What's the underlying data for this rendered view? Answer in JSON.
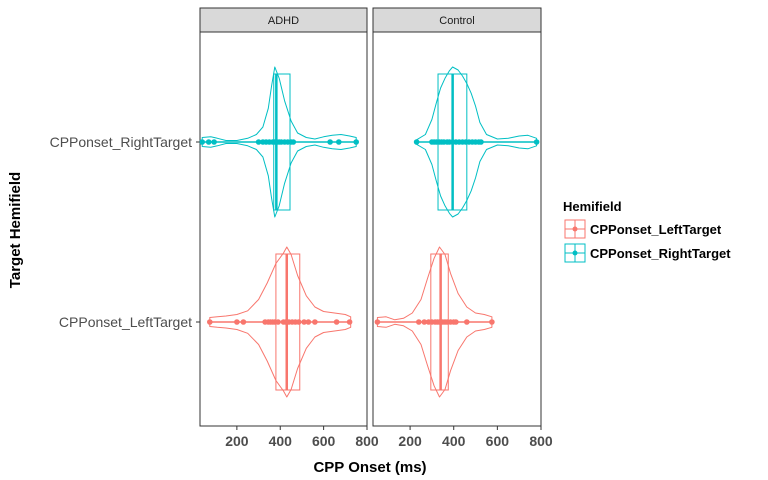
{
  "colors": {
    "LeftTarget": "#F8766D",
    "RightTarget": "#00BFC4"
  },
  "chart_data": {
    "type": "violin-box-dot",
    "xlabel": "CPP Onset (ms)",
    "ylabel": "Target Hemifield",
    "xlim": [
      30,
      800
    ],
    "xticks": [
      "200",
      "400",
      "600",
      "800"
    ],
    "xtick_values": [
      200,
      400,
      600,
      800
    ],
    "categories": [
      "CPPonset_LeftTarget",
      "CPPonset_RightTarget"
    ],
    "legend": {
      "title": "Hemifield",
      "position": "right",
      "entries": [
        "CPPonset_LeftTarget",
        "CPPonset_RightTarget"
      ]
    },
    "panels": [
      {
        "title": "ADHD",
        "groups": [
          {
            "category": "CPPonset_RightTarget",
            "box": {
              "q1": 370,
              "median": 382,
              "q3": 445
            },
            "points": [
              40,
              70,
              95,
              300,
              320,
              335,
              350,
              365,
              375,
              385,
              395,
              405,
              420,
              435,
              450,
              460,
              630,
              670,
              750
            ],
            "density": [
              [
                40,
                0.06
              ],
              [
                80,
                0.07
              ],
              [
                110,
                0.05
              ],
              [
                150,
                0.02
              ],
              [
                200,
                0.02
              ],
              [
                250,
                0.05
              ],
              [
                290,
                0.1
              ],
              [
                320,
                0.2
              ],
              [
                345,
                0.45
              ],
              [
                360,
                0.75
              ],
              [
                375,
                1.0
              ],
              [
                395,
                0.85
              ],
              [
                420,
                0.55
              ],
              [
                450,
                0.28
              ],
              [
                480,
                0.12
              ],
              [
                520,
                0.06
              ],
              [
                560,
                0.04
              ],
              [
                600,
                0.07
              ],
              [
                640,
                0.09
              ],
              [
                680,
                0.1
              ],
              [
                720,
                0.08
              ],
              [
                750,
                0.06
              ]
            ]
          },
          {
            "category": "CPPonset_LeftTarget",
            "box": {
              "q1": 380,
              "median": 430,
              "q3": 490
            },
            "points": [
              75,
              200,
              230,
              330,
              345,
              355,
              365,
              375,
              390,
              415,
              425,
              440,
              455,
              470,
              485,
              510,
              530,
              560,
              660,
              720
            ],
            "density": [
              [
                75,
                0.06
              ],
              [
                110,
                0.07
              ],
              [
                150,
                0.08
              ],
              [
                200,
                0.1
              ],
              [
                250,
                0.15
              ],
              [
                300,
                0.3
              ],
              [
                340,
                0.52
              ],
              [
                380,
                0.78
              ],
              [
                415,
                0.92
              ],
              [
                430,
                1.0
              ],
              [
                450,
                0.9
              ],
              [
                480,
                0.62
              ],
              [
                520,
                0.35
              ],
              [
                560,
                0.2
              ],
              [
                600,
                0.14
              ],
              [
                650,
                0.12
              ],
              [
                700,
                0.1
              ],
              [
                725,
                0.07
              ]
            ]
          }
        ]
      },
      {
        "title": "Control",
        "groups": [
          {
            "category": "CPPonset_RightTarget",
            "box": {
              "q1": 328,
              "median": 395,
              "q3": 460
            },
            "points": [
              230,
              300,
              310,
              320,
              335,
              345,
              355,
              370,
              380,
              395,
              410,
              425,
              440,
              455,
              470,
              485,
              500,
              515,
              525,
              780
            ],
            "density": [
              [
                230,
                0.03
              ],
              [
                270,
                0.1
              ],
              [
                300,
                0.3
              ],
              [
                320,
                0.52
              ],
              [
                340,
                0.72
              ],
              [
                360,
                0.85
              ],
              [
                380,
                0.95
              ],
              [
                395,
                1.0
              ],
              [
                420,
                0.96
              ],
              [
                440,
                0.88
              ],
              [
                460,
                0.78
              ],
              [
                480,
                0.65
              ],
              [
                500,
                0.48
              ],
              [
                520,
                0.26
              ],
              [
                550,
                0.1
              ],
              [
                600,
                0.04
              ],
              [
                650,
                0.05
              ],
              [
                700,
                0.08
              ],
              [
                740,
                0.09
              ],
              [
                780,
                0.05
              ]
            ]
          },
          {
            "category": "CPPonset_LeftTarget",
            "box": {
              "q1": 295,
              "median": 340,
              "q3": 375
            },
            "points": [
              50,
              240,
              265,
              285,
              300,
              315,
              325,
              335,
              340,
              350,
              360,
              370,
              385,
              400,
              410,
              460,
              575
            ],
            "density": [
              [
                50,
                0.06
              ],
              [
                90,
                0.07
              ],
              [
                130,
                0.03
              ],
              [
                170,
                0.05
              ],
              [
                210,
                0.12
              ],
              [
                250,
                0.3
              ],
              [
                280,
                0.58
              ],
              [
                310,
                0.85
              ],
              [
                335,
                1.0
              ],
              [
                360,
                0.9
              ],
              [
                385,
                0.65
              ],
              [
                420,
                0.38
              ],
              [
                460,
                0.2
              ],
              [
                500,
                0.12
              ],
              [
                540,
                0.1
              ],
              [
                575,
                0.07
              ]
            ]
          }
        ]
      }
    ]
  }
}
